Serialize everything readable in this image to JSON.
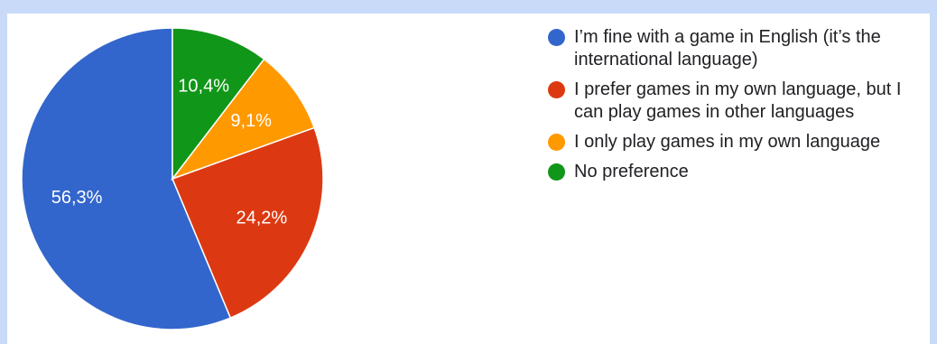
{
  "colors": {
    "background": "#c9daf8",
    "card": "#ffffff",
    "label_text": "#ffffff"
  },
  "chart_data": {
    "type": "pie",
    "slices": [
      {
        "label": "I’m fine with a game in English (it’s the international language)",
        "value": 56.3,
        "display": "56,3%",
        "color": "#3366cc"
      },
      {
        "label": "I prefer games in my own language, but I can play games in other languages",
        "value": 24.2,
        "display": "24,2%",
        "color": "#dc3912"
      },
      {
        "label": "I only play games in my own language",
        "value": 9.1,
        "display": "9,1%",
        "color": "#ff9900"
      },
      {
        "label": "No preference",
        "value": 10.4,
        "display": "10,4%",
        "color": "#109618"
      }
    ],
    "start_angle_deg": 90,
    "direction": "counterclockwise",
    "legend_position": "right"
  },
  "legend": {
    "items": [
      {
        "label": "I’m fine with a game in English (it’s the international language)",
        "color": "#3366cc"
      },
      {
        "label": "I prefer games in my own language, but I can play games in other languages",
        "color": "#dc3912"
      },
      {
        "label": "I only play games in my own language",
        "color": "#ff9900"
      },
      {
        "label": "No preference",
        "color": "#109618"
      }
    ]
  }
}
